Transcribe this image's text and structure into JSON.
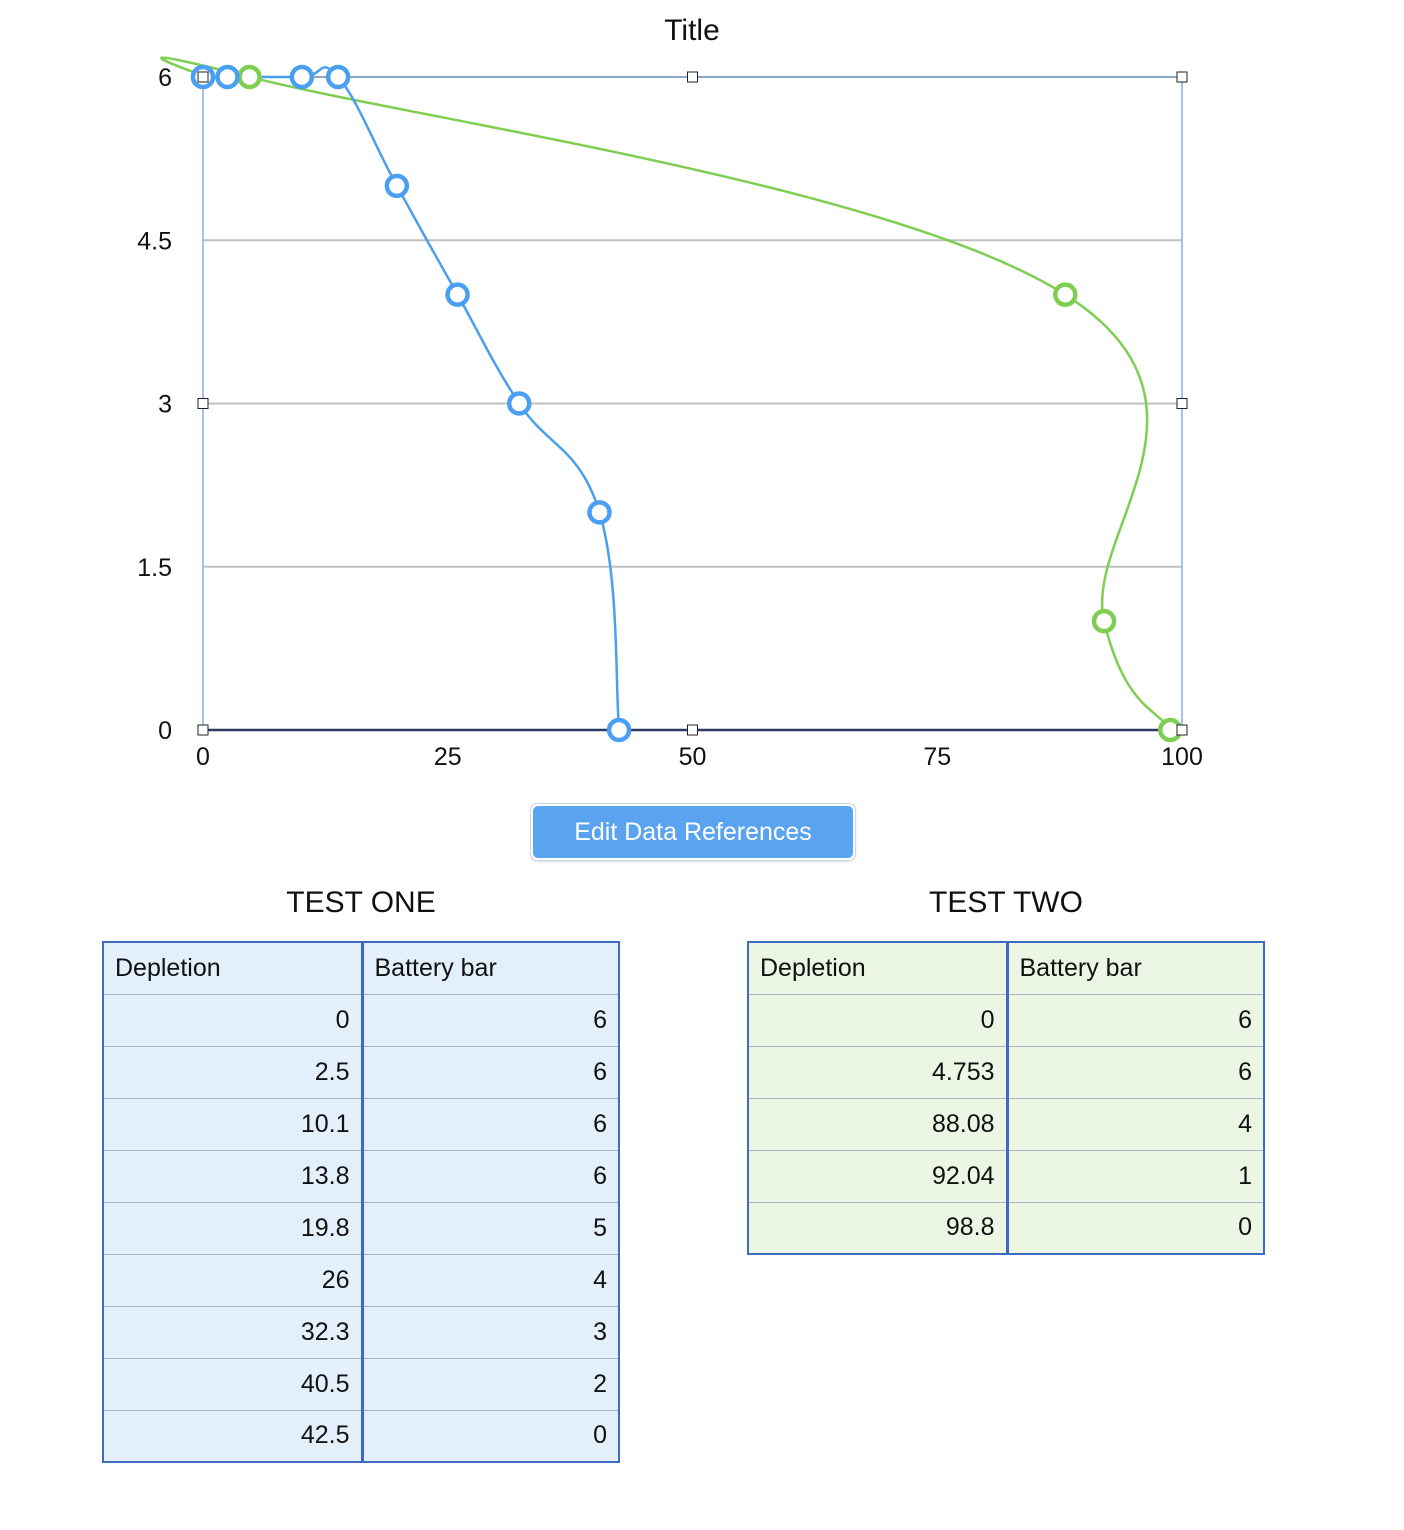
{
  "chart_data": {
    "type": "scatter",
    "title": "Title",
    "xlim": [
      0,
      100
    ],
    "ylim": [
      0,
      6
    ],
    "x_ticks": [
      "0",
      "25",
      "50",
      "75",
      "100"
    ],
    "y_ticks": [
      "0",
      "1.5",
      "3",
      "4.5",
      "6"
    ],
    "grid": true,
    "series": [
      {
        "color": "#4a9ff0",
        "x": [
          0,
          2.5,
          10.1,
          13.8,
          19.8,
          26,
          32.3,
          40.5,
          42.5
        ],
        "y": [
          6,
          6,
          6,
          6,
          5,
          4,
          3,
          2,
          0
        ]
      },
      {
        "color": "#7ece52",
        "x": [
          0,
          4.753,
          88.08,
          92.04,
          98.8
        ],
        "y": [
          6,
          6,
          4,
          1,
          0
        ]
      }
    ]
  },
  "edit_button": {
    "label": "Edit Data References"
  },
  "tables": [
    {
      "title": "TEST ONE",
      "headers": [
        "Depletion",
        "Battery bar"
      ],
      "rows": [
        [
          "0",
          "6"
        ],
        [
          "2.5",
          "6"
        ],
        [
          "10.1",
          "6"
        ],
        [
          "13.8",
          "6"
        ],
        [
          "19.8",
          "5"
        ],
        [
          "26",
          "4"
        ],
        [
          "32.3",
          "3"
        ],
        [
          "40.5",
          "2"
        ],
        [
          "42.5",
          "0"
        ]
      ]
    },
    {
      "title": "TEST TWO",
      "headers": [
        "Depletion",
        "Battery bar"
      ],
      "rows": [
        [
          "0",
          "6"
        ],
        [
          "4.753",
          "6"
        ],
        [
          "88.08",
          "4"
        ],
        [
          "92.04",
          "1"
        ],
        [
          "98.8",
          "0"
        ]
      ]
    }
  ]
}
